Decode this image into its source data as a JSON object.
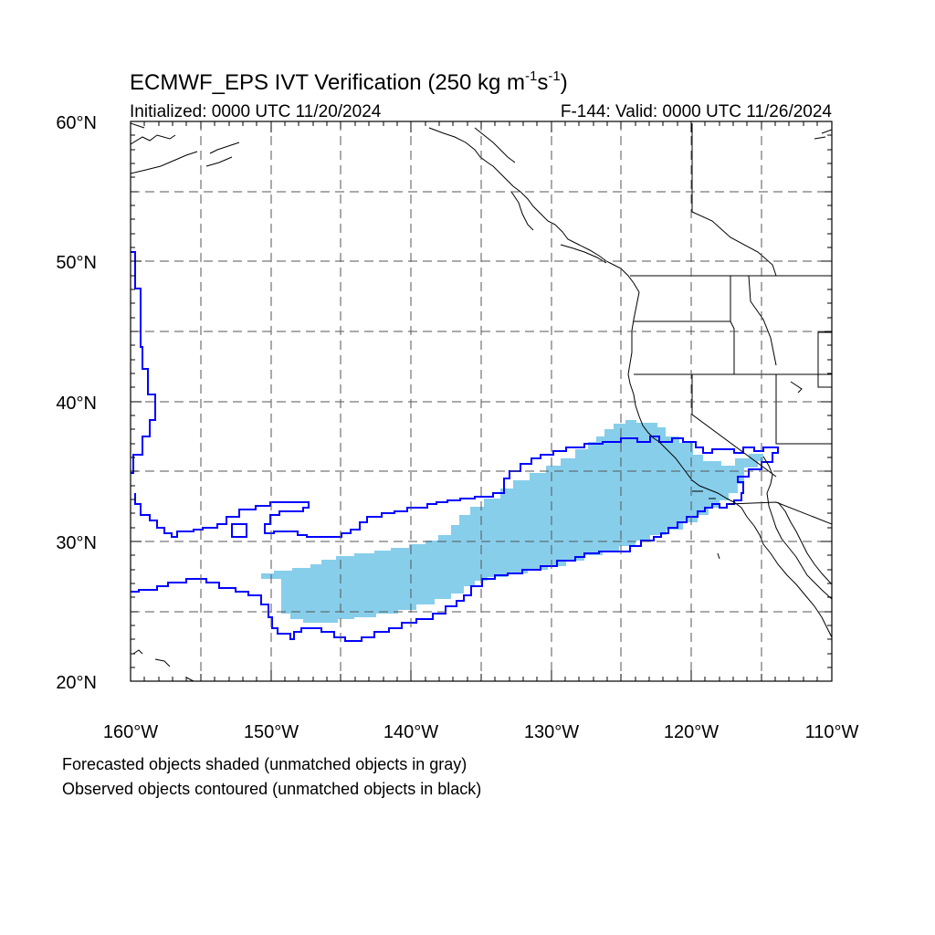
{
  "header": {
    "title_main": "ECMWF_EPS IVT Verification (250 kg m",
    "title_sup1": "-1",
    "title_s": "s",
    "title_sup2": "-1",
    "title_close": ")",
    "initialized": "Initialized: 0000 UTC 11/20/2024",
    "valid": "F-144: Valid: 0000 UTC 11/26/2024"
  },
  "map": {
    "lon_range": [
      -160,
      -110
    ],
    "lat_range": [
      20,
      60
    ],
    "x_ticks": [
      "160°W",
      "150°W",
      "140°W",
      "130°W",
      "120°W",
      "110°W"
    ],
    "y_ticks": [
      "60°N",
      "50°N",
      "40°N",
      "30°N",
      "20°N"
    ],
    "grid": "dashed every 5°",
    "colors": {
      "forecast_fill": "#87CEEB",
      "observed_contour": "#0000FF",
      "coastline": "#000000",
      "grid": "#555555"
    }
  },
  "legend": {
    "line1": "Forecasted objects shaded (unmatched objects in gray)",
    "line2": "Observed objects contoured (unmatched objects in black)"
  }
}
